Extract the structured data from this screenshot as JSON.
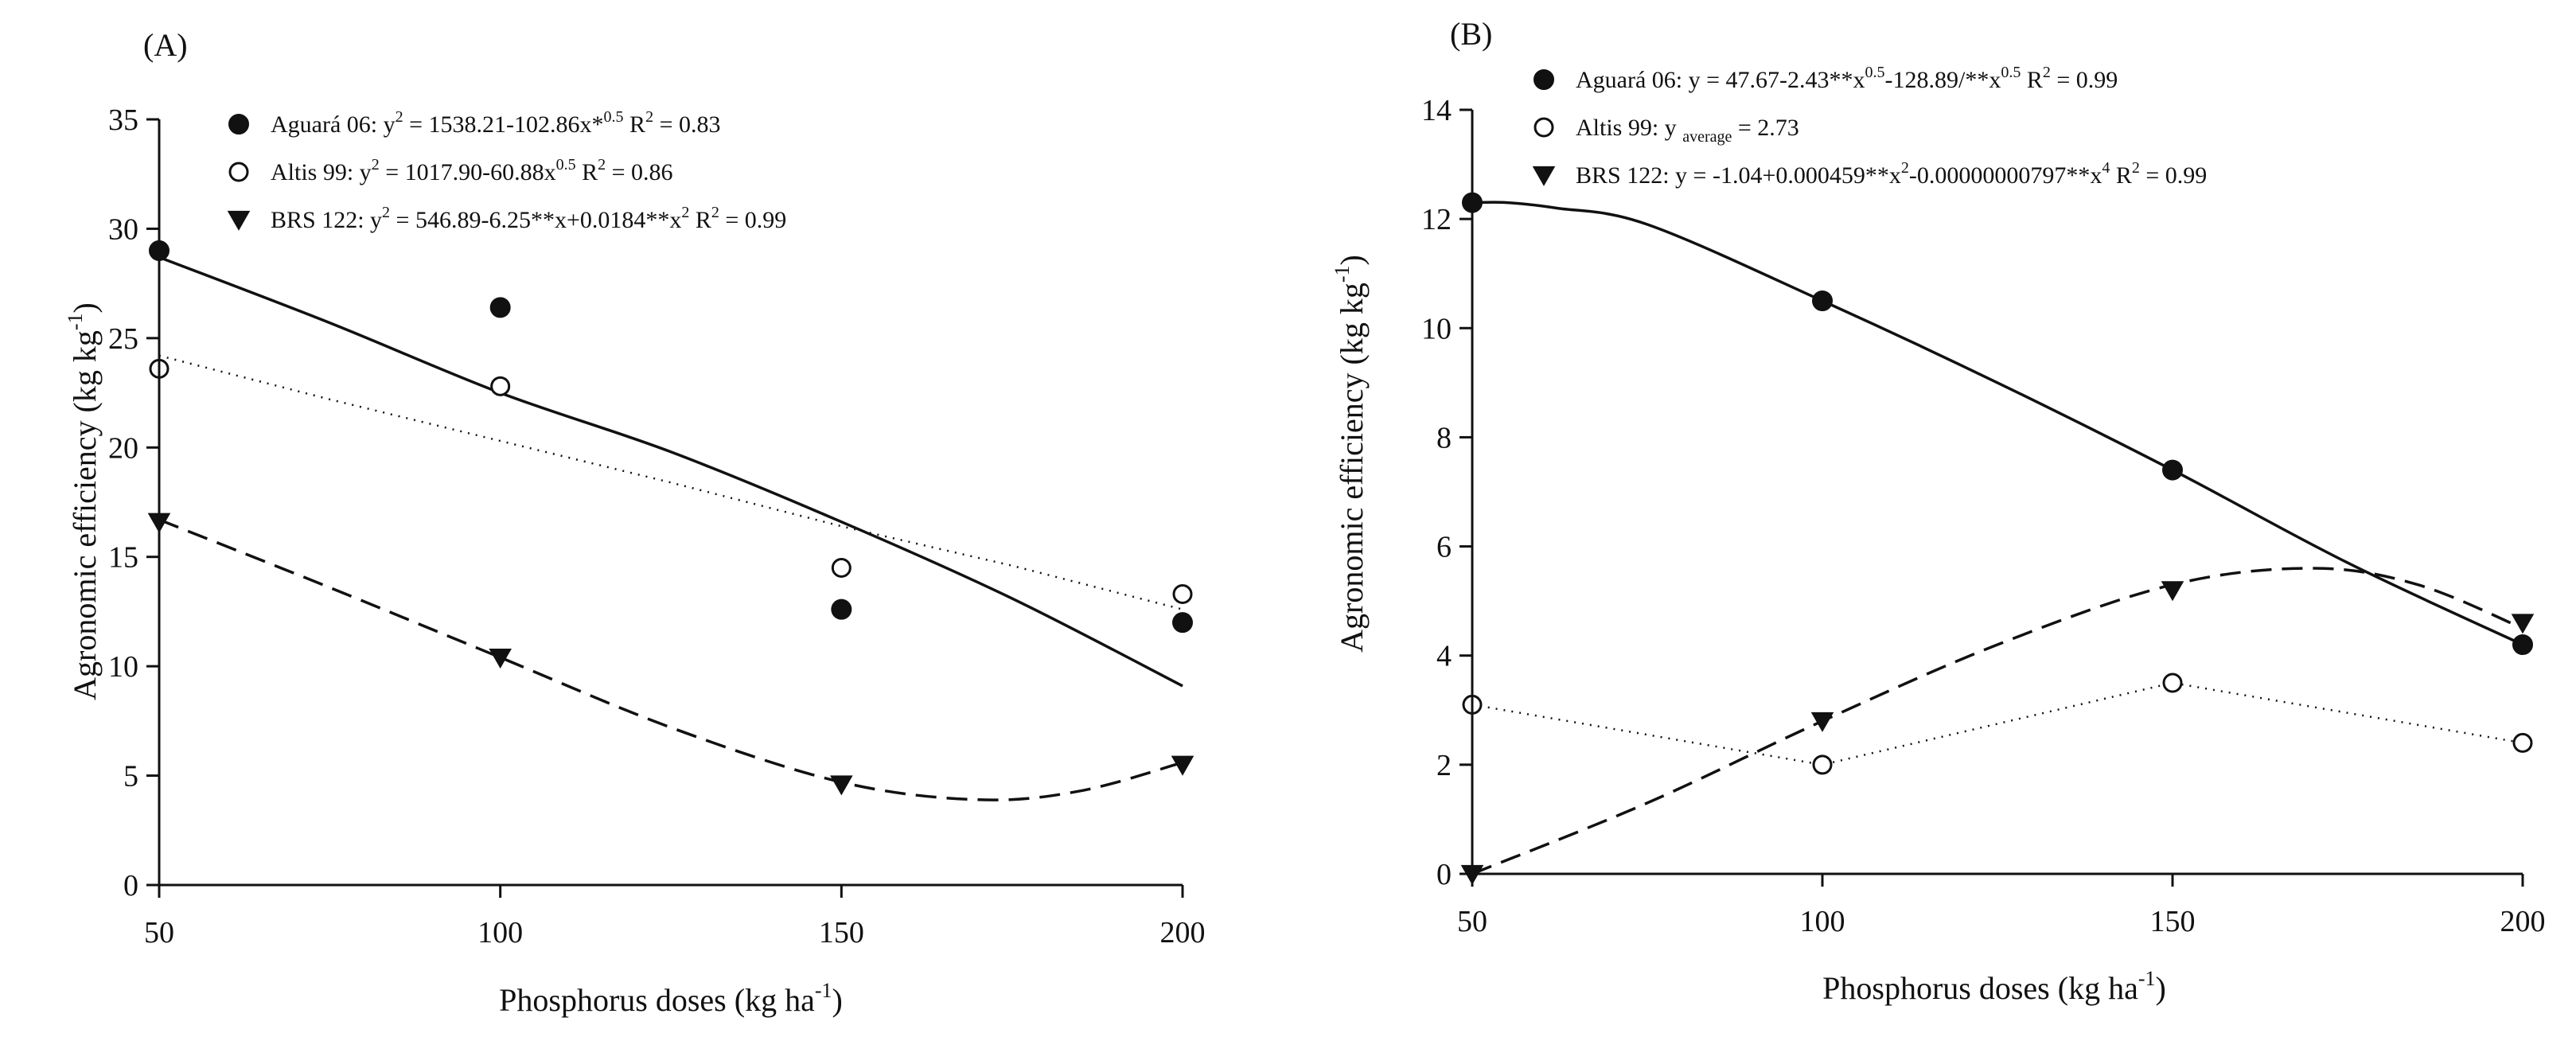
{
  "chart_data": [
    {
      "type": "scatter",
      "panel_label": "(A)",
      "xlabel_main": "Phosphorus doses (kg ha",
      "xlabel_sup": "-1",
      "xlabel_end": ")",
      "ylabel_main": "Agronomic efficiency  (kg kg",
      "ylabel_sup": "-1",
      "ylabel_end": ")",
      "x_ticks": [
        50,
        100,
        150,
        200
      ],
      "y_ticks": [
        0,
        5,
        10,
        15,
        20,
        25,
        30,
        35
      ],
      "xlim": [
        50,
        200
      ],
      "ylim": [
        0,
        35
      ],
      "series": [
        {
          "name": "Aguará 06",
          "marker": "filled-circle",
          "line": "solid",
          "x": [
            50,
            100,
            150,
            200
          ],
          "values": [
            29.0,
            26.4,
            12.6,
            12.0
          ],
          "fit_x": [
            50,
            75,
            100,
            125,
            150,
            175,
            200
          ],
          "fit_y": [
            28.7,
            25.7,
            22.5,
            19.8,
            16.6,
            13.1,
            9.1
          ],
          "legend": [
            "Aguará 06: y",
            "2",
            " = 1538.21-102.86x*",
            "0.5",
            "    R",
            "2",
            " = 0.83"
          ]
        },
        {
          "name": "Altis 99",
          "marker": "open-circle",
          "line": "dotted",
          "x": [
            50,
            100,
            150,
            200
          ],
          "values": [
            23.6,
            22.8,
            14.5,
            13.3
          ],
          "fit_x": [
            50,
            75,
            100,
            125,
            150,
            175,
            200
          ],
          "fit_y": [
            24.2,
            22.2,
            20.3,
            18.4,
            16.4,
            14.6,
            12.6
          ],
          "legend": [
            "Altis 99: y",
            "2",
            " = 1017.90-60.88x",
            "0.5",
            "    R",
            "2",
            " = 0.86"
          ]
        },
        {
          "name": "BRS 122",
          "marker": "filled-triangle-down",
          "line": "dashed",
          "x": [
            50,
            100,
            150,
            200
          ],
          "values": [
            16.6,
            10.4,
            4.6,
            5.5
          ],
          "fit_x": [
            50,
            75,
            100,
            125,
            150,
            170,
            185,
            200
          ],
          "fit_y": [
            16.7,
            13.6,
            10.4,
            7.2,
            4.7,
            3.9,
            4.3,
            5.6
          ],
          "legend": [
            "BRS 122: y",
            "2",
            " = 546.89-6.25**x+0.0184**x",
            "2",
            "    R",
            "2",
            " = 0.99"
          ]
        }
      ]
    },
    {
      "type": "scatter",
      "panel_label": "(B)",
      "xlabel_main": "Phosphorus doses (kg ha",
      "xlabel_sup": "-1",
      "xlabel_end": ")",
      "ylabel_main": "Agronomic efficiency  (kg kg",
      "ylabel_sup": "-1",
      "ylabel_end": ")",
      "x_ticks": [
        50,
        100,
        150,
        200
      ],
      "y_ticks": [
        0,
        2,
        4,
        6,
        8,
        10,
        12,
        14
      ],
      "xlim": [
        50,
        200
      ],
      "ylim": [
        0,
        14
      ],
      "series": [
        {
          "name": "Aguará 06",
          "marker": "filled-circle",
          "line": "solid",
          "x": [
            50,
            100,
            150,
            200
          ],
          "values": [
            12.3,
            10.5,
            7.4,
            4.2
          ],
          "fit_x": [
            50,
            55,
            62,
            75,
            100,
            125,
            150,
            175,
            200
          ],
          "fit_y": [
            12.3,
            12.3,
            12.2,
            11.9,
            10.5,
            9.0,
            7.4,
            5.7,
            4.2
          ],
          "legend": [
            "Aguará 06: y = 47.67-2.43**x",
            "0.5",
            "-128.89/**x",
            "0.5",
            "    R",
            "2",
            " = 0.99"
          ]
        },
        {
          "name": "Altis 99",
          "marker": "open-circle",
          "line": "dotted",
          "x": [
            50,
            100,
            150,
            200
          ],
          "values": [
            3.1,
            2.0,
            3.5,
            2.4
          ],
          "fit_x": [
            50,
            100,
            150,
            200
          ],
          "fit_y": [
            3.1,
            2.0,
            3.5,
            2.4
          ],
          "legend": [
            "Altis 99: y ",
            "average",
            " =  2.73"
          ]
        },
        {
          "name": "BRS 122",
          "marker": "filled-triangle-down",
          "line": "dashed",
          "x": [
            50,
            100,
            150,
            200
          ],
          "values": [
            0.0,
            2.8,
            5.2,
            4.6
          ],
          "fit_x": [
            50,
            75,
            100,
            125,
            150,
            170,
            185,
            200
          ],
          "fit_y": [
            0.0,
            1.3,
            2.8,
            4.2,
            5.3,
            5.6,
            5.3,
            4.5
          ],
          "legend": [
            "BRS 122: y = -1.04+0.000459**x",
            "2",
            "-0.00000000797**x",
            "4",
            "    R",
            "2",
            " = 0.99"
          ]
        }
      ]
    }
  ]
}
